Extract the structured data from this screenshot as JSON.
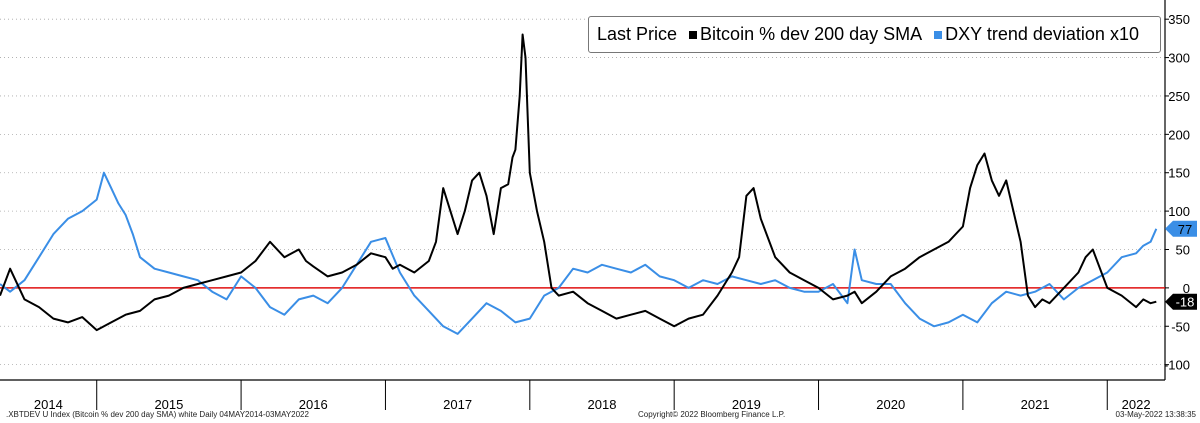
{
  "chart_data": {
    "type": "line",
    "legend_title": "Last Price",
    "legend_position": "top-right",
    "x_labels": [
      "2014",
      "2015",
      "2016",
      "2017",
      "2018",
      "2019",
      "2020",
      "2021",
      "2022"
    ],
    "ylim": [
      -120,
      375
    ],
    "y_ticks": [
      350,
      300,
      250,
      200,
      150,
      100,
      50,
      0,
      -50,
      -100
    ],
    "zero_line_color": "#e01010",
    "series": [
      {
        "name": "Bitcoin % dev 200 day SMA",
        "color": "#000000",
        "last_value": "-18",
        "badge_fg": "#ffffff",
        "x": [
          2014.33,
          2014.4,
          2014.5,
          2014.6,
          2014.7,
          2014.8,
          2014.9,
          2015.0,
          2015.1,
          2015.2,
          2015.3,
          2015.4,
          2015.5,
          2015.6,
          2015.7,
          2015.8,
          2015.9,
          2016.0,
          2016.1,
          2016.2,
          2016.3,
          2016.4,
          2016.45,
          2016.5,
          2016.6,
          2016.7,
          2016.8,
          2016.9,
          2017.0,
          2017.05,
          2017.1,
          2017.2,
          2017.3,
          2017.35,
          2017.4,
          2017.45,
          2017.5,
          2017.55,
          2017.6,
          2017.65,
          2017.7,
          2017.75,
          2017.8,
          2017.85,
          2017.88,
          2017.9,
          2017.93,
          2017.95,
          2017.97,
          2018.0,
          2018.05,
          2018.1,
          2018.15,
          2018.2,
          2018.3,
          2018.4,
          2018.5,
          2018.6,
          2018.7,
          2018.8,
          2018.9,
          2019.0,
          2019.1,
          2019.2,
          2019.3,
          2019.4,
          2019.45,
          2019.5,
          2019.55,
          2019.6,
          2019.7,
          2019.8,
          2019.9,
          2020.0,
          2020.1,
          2020.2,
          2020.25,
          2020.3,
          2020.4,
          2020.5,
          2020.6,
          2020.7,
          2020.8,
          2020.9,
          2021.0,
          2021.05,
          2021.1,
          2021.15,
          2021.2,
          2021.25,
          2021.3,
          2021.35,
          2021.4,
          2021.45,
          2021.5,
          2021.55,
          2021.6,
          2021.7,
          2021.8,
          2021.85,
          2021.9,
          2022.0,
          2022.1,
          2022.2,
          2022.25,
          2022.3,
          2022.34
        ],
        "y": [
          -10,
          25,
          -15,
          -25,
          -40,
          -45,
          -38,
          -55,
          -45,
          -35,
          -30,
          -15,
          -10,
          0,
          5,
          10,
          15,
          20,
          35,
          60,
          40,
          50,
          35,
          28,
          15,
          20,
          30,
          45,
          40,
          25,
          30,
          20,
          35,
          60,
          130,
          100,
          70,
          100,
          140,
          150,
          120,
          70,
          130,
          135,
          170,
          180,
          250,
          330,
          300,
          150,
          100,
          60,
          0,
          -10,
          -5,
          -20,
          -30,
          -40,
          -35,
          -30,
          -40,
          -50,
          -40,
          -35,
          -10,
          20,
          40,
          120,
          130,
          90,
          40,
          20,
          10,
          0,
          -15,
          -10,
          -5,
          -20,
          -5,
          15,
          25,
          40,
          50,
          60,
          80,
          130,
          160,
          175,
          140,
          120,
          140,
          100,
          60,
          -10,
          -25,
          -15,
          -20,
          0,
          20,
          40,
          50,
          0,
          -10,
          -25,
          -15,
          -20,
          -18
        ]
      },
      {
        "name": "DXY trend deviation x10",
        "color": "#3a8ee6",
        "last_value": "77",
        "badge_fg": "#000000",
        "x": [
          2014.33,
          2014.4,
          2014.5,
          2014.6,
          2014.7,
          2014.8,
          2014.9,
          2015.0,
          2015.05,
          2015.1,
          2015.15,
          2015.2,
          2015.25,
          2015.3,
          2015.4,
          2015.5,
          2015.6,
          2015.7,
          2015.8,
          2015.9,
          2016.0,
          2016.1,
          2016.2,
          2016.3,
          2016.4,
          2016.5,
          2016.6,
          2016.7,
          2016.8,
          2016.9,
          2017.0,
          2017.1,
          2017.2,
          2017.3,
          2017.4,
          2017.5,
          2017.6,
          2017.7,
          2017.8,
          2017.9,
          2018.0,
          2018.1,
          2018.2,
          2018.3,
          2018.4,
          2018.5,
          2018.6,
          2018.7,
          2018.8,
          2018.9,
          2019.0,
          2019.1,
          2019.2,
          2019.3,
          2019.4,
          2019.5,
          2019.6,
          2019.7,
          2019.8,
          2019.9,
          2020.0,
          2020.1,
          2020.2,
          2020.25,
          2020.3,
          2020.4,
          2020.5,
          2020.6,
          2020.7,
          2020.8,
          2020.9,
          2021.0,
          2021.1,
          2021.2,
          2021.3,
          2021.4,
          2021.5,
          2021.6,
          2021.7,
          2021.8,
          2021.9,
          2022.0,
          2022.1,
          2022.2,
          2022.25,
          2022.3,
          2022.34
        ],
        "y": [
          5,
          -5,
          10,
          40,
          70,
          90,
          100,
          115,
          150,
          130,
          110,
          95,
          70,
          40,
          25,
          20,
          15,
          10,
          -5,
          -15,
          15,
          0,
          -25,
          -35,
          -15,
          -10,
          -20,
          0,
          30,
          60,
          65,
          20,
          -10,
          -30,
          -50,
          -60,
          -40,
          -20,
          -30,
          -45,
          -40,
          -10,
          0,
          25,
          20,
          30,
          25,
          20,
          30,
          15,
          10,
          0,
          10,
          5,
          15,
          10,
          5,
          10,
          0,
          -5,
          -5,
          5,
          -20,
          50,
          10,
          5,
          5,
          -20,
          -40,
          -50,
          -45,
          -35,
          -45,
          -20,
          -5,
          -10,
          -5,
          5,
          -15,
          0,
          10,
          20,
          40,
          45,
          55,
          60,
          77
        ]
      }
    ]
  },
  "footer": {
    "left": ".XBTDEV U Index (Bitcoin % dev 200 day SMA) white  Daily 04MAY2014-03MAY2022",
    "center": "Copyright© 2022 Bloomberg Finance L.P.",
    "right": "03-May-2022 13:38:35"
  }
}
